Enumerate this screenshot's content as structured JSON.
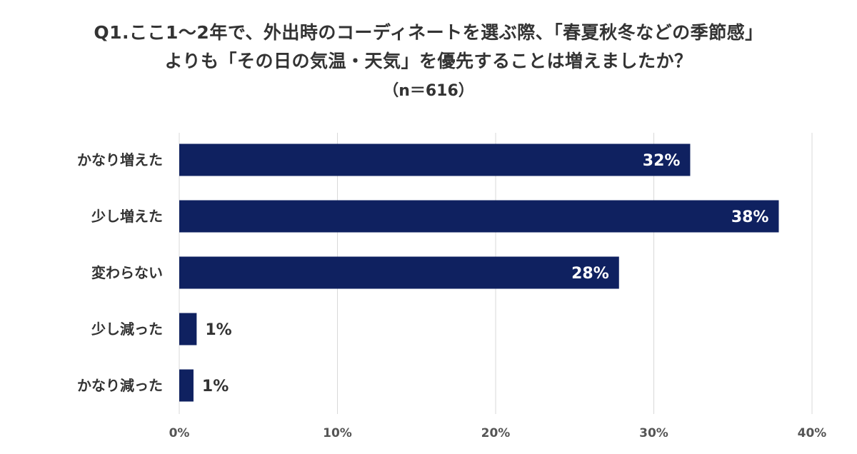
{
  "title_line1": "Q1.ここ1〜2年で、外出時のコーディネートを選ぶ際、「春夏秋冬などの季節感」",
  "title_line2": "よりも「その日の気温・天気」を優先することは増えましたか？",
  "subtitle": "（n＝616）",
  "colors": {
    "bar": "#0f2160",
    "grid": "#d9d9d9",
    "label_inside": "#ffffff",
    "label_outside": "#333333"
  },
  "chart_data": {
    "type": "bar",
    "orientation": "horizontal",
    "categories": [
      "かなり増えた",
      "少し増えた",
      "変わらない",
      "少し減った",
      "かなり減った"
    ],
    "values": [
      32.3,
      37.9,
      27.8,
      1.1,
      0.9
    ],
    "data_labels": [
      "32%",
      "38%",
      "28%",
      "1%",
      "1%"
    ],
    "xlim": [
      0,
      40
    ],
    "ticks": [
      0,
      10,
      20,
      30,
      40
    ],
    "tick_labels": [
      "0%",
      "10%",
      "20%",
      "30%",
      "40%"
    ],
    "grid": true,
    "legend": "none"
  }
}
